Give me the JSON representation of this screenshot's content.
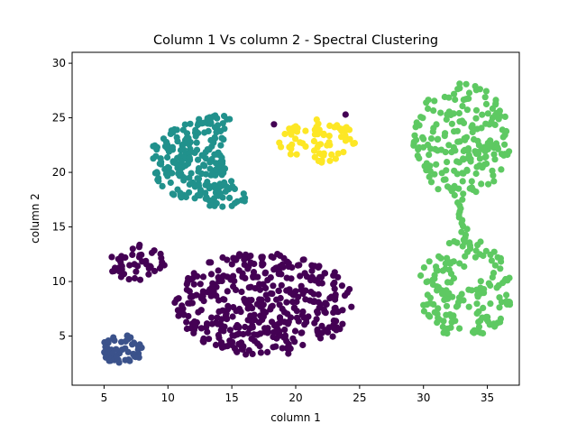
{
  "chart_data": {
    "type": "scatter",
    "title": "Column 1 Vs column 2 - Spectral Clustering",
    "xlabel": "column 1",
    "ylabel": "column 2",
    "xlim": [
      2.5,
      37.5
    ],
    "ylim": [
      0.5,
      31
    ],
    "xticks": [
      5,
      10,
      15,
      20,
      25,
      30,
      35
    ],
    "yticks": [
      5,
      10,
      15,
      20,
      25,
      30
    ],
    "grid": false,
    "legend": "none",
    "clusters": [
      {
        "color": "#440154",
        "shape": "ellipse",
        "center": [
          17.5,
          8.0
        ],
        "spread": [
          7.0,
          4.8
        ],
        "count": 420
      },
      {
        "color": "#440154",
        "shape": "blob",
        "center": [
          7.5,
          11.8
        ],
        "spread": [
          2.3,
          1.7
        ],
        "count": 45
      },
      {
        "color": "#3b528b",
        "shape": "blob",
        "center": [
          6.4,
          3.7
        ],
        "spread": [
          1.7,
          1.4
        ],
        "count": 55
      },
      {
        "color": "#21918c",
        "shape": "crescent",
        "center": [
          14.5,
          21.0
        ],
        "spread": [
          12.0,
          8.5
        ],
        "count": 240
      },
      {
        "color": "#fde725",
        "shape": "ellipse",
        "center": [
          21.8,
          22.9
        ],
        "spread": [
          3.1,
          2.0
        ],
        "count": 70
      },
      {
        "color": "#5ec962",
        "shape": "ellipse",
        "center": [
          33.0,
          23.0
        ],
        "spread": [
          3.8,
          5.2
        ],
        "count": 200
      },
      {
        "color": "#5ec962",
        "shape": "ellipse",
        "center": [
          33.3,
          9.3
        ],
        "spread": [
          3.7,
          4.6
        ],
        "count": 160
      },
      {
        "color": "#5ec962",
        "shape": "bridge",
        "from": [
          32.8,
          17.5
        ],
        "to": [
          33.3,
          14.0
        ],
        "count": 14
      }
    ],
    "outliers": [
      {
        "x": 18.3,
        "y": 24.4,
        "color": "#440154"
      },
      {
        "x": 23.9,
        "y": 25.3,
        "color": "#440154"
      }
    ]
  }
}
